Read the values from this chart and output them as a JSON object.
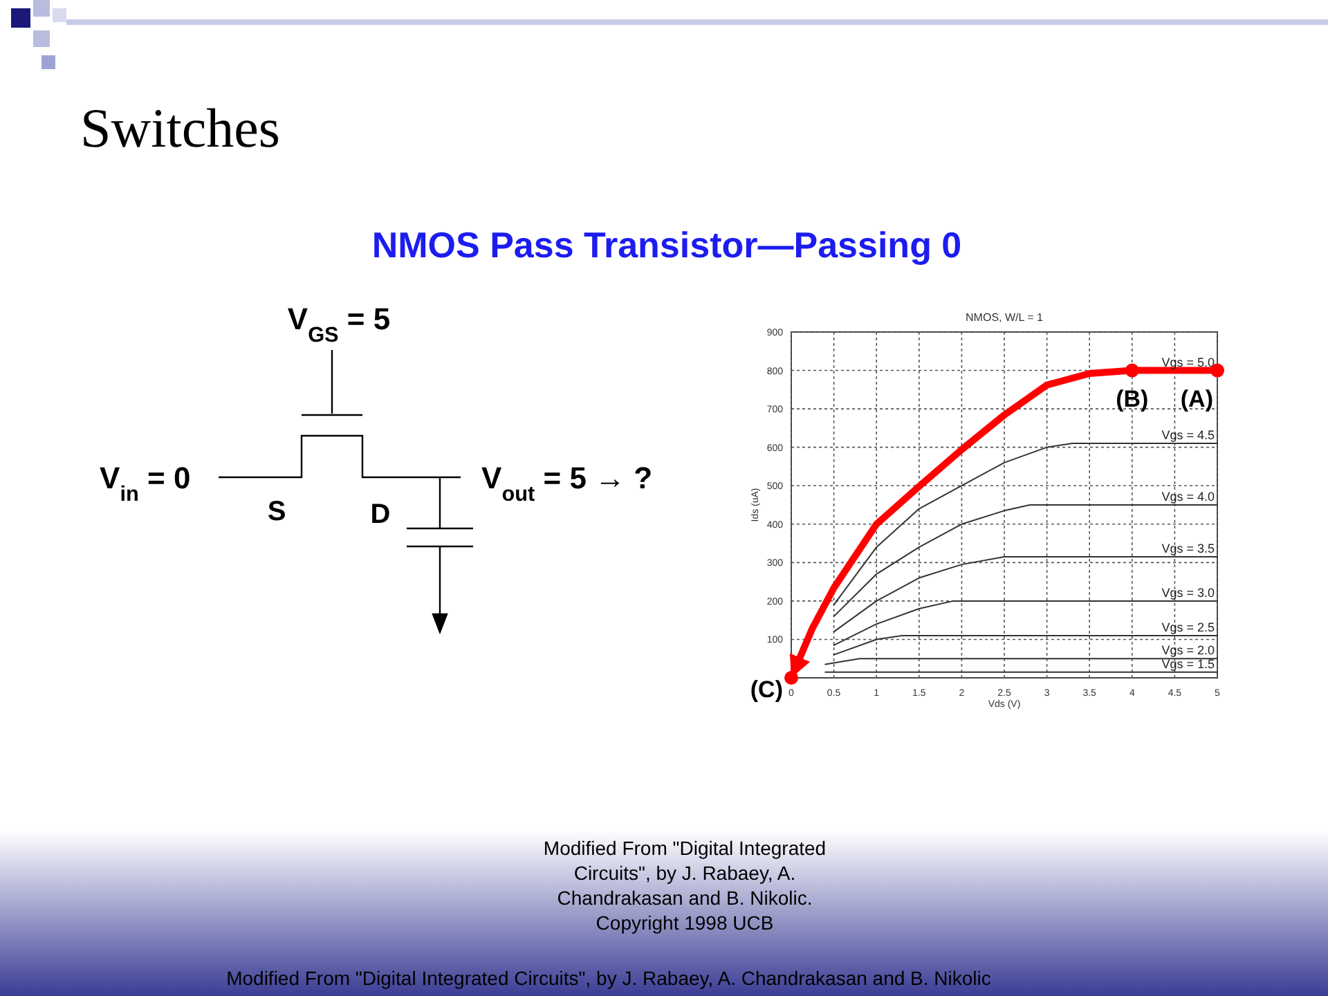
{
  "chart_data": {
    "type": "line",
    "title": "Switches",
    "subtitle": "NMOS Pass Transistor—Passing 0",
    "xlabel": "Vds (V)",
    "ylabel": "Ids (uA)",
    "xlim": [
      0,
      5
    ],
    "ylim": [
      0,
      900
    ],
    "xticks": [
      0,
      0.5,
      1,
      1.5,
      2,
      2.5,
      3,
      3.5,
      4,
      4.5,
      5
    ],
    "yticks": [
      100,
      200,
      300,
      400,
      500,
      600,
      700,
      800,
      900
    ],
    "grid": true,
    "line_style": "solid",
    "marker": "none",
    "series": [
      {
        "name": "Vgs = 5.0",
        "color": "#ff0000",
        "x": [
          0,
          0.25,
          0.5,
          1,
          1.5,
          2,
          2.5,
          3,
          3.5,
          4,
          5
        ],
        "values": [
          0,
          130,
          234,
          400,
          498,
          594,
          684,
          762,
          792,
          800,
          800
        ]
      },
      {
        "name": "Vgs = 4.5",
        "color": "#333333",
        "x": [
          0.5,
          1,
          1.5,
          2,
          2.5,
          3,
          3.3,
          5
        ],
        "values": [
          190,
          340,
          440,
          500,
          560,
          600,
          610,
          610
        ]
      },
      {
        "name": "Vgs = 4.0",
        "color": "#333333",
        "x": [
          0.5,
          1,
          1.5,
          2,
          2.5,
          2.8,
          5
        ],
        "values": [
          160,
          270,
          340,
          400,
          435,
          450,
          450
        ]
      },
      {
        "name": "Vgs = 3.5",
        "color": "#333333",
        "x": [
          0.5,
          1,
          1.5,
          2,
          2.5,
          5
        ],
        "values": [
          120,
          200,
          260,
          295,
          315,
          315
        ]
      },
      {
        "name": "Vgs = 3.0",
        "color": "#333333",
        "x": [
          0.5,
          1,
          1.5,
          1.9,
          5
        ],
        "values": [
          85,
          140,
          180,
          200,
          200
        ]
      },
      {
        "name": "Vgs = 2.5",
        "color": "#333333",
        "x": [
          0.5,
          1,
          1.3,
          5
        ],
        "values": [
          60,
          100,
          110,
          110
        ]
      },
      {
        "name": "Vgs = 2.0",
        "color": "#333333",
        "x": [
          0.4,
          0.8,
          5
        ],
        "values": [
          35,
          50,
          50
        ]
      },
      {
        "name": "Vgs = 1.5",
        "color": "#333333",
        "x": [
          0.4,
          5
        ],
        "values": [
          15,
          15
        ]
      },
      {
        "type": "scatter",
        "marker": "circle",
        "color": "#ff0000",
        "x": [
          0,
          4,
          5
        ],
        "values": [
          0,
          800,
          800
        ]
      }
    ],
    "annotations": [
      "NMOS, W/L = 1",
      "V$_{GS}$ = 5",
      "V$_{in}$ = 0",
      "S",
      "D",
      "V$_{out}$ = 5 → ?",
      "Modified From \"Digital Integrated Circuits\", by J. Rabaey, A. Chandrakasan and B. Nikolic. Copyright 1998 UCB",
      "Modified From \"Digital Integrated Circuits\", by J. Rabaey, A. Chandrakasan and B. Nikolic",
      {
        "text": "(A)",
        "x": 5,
        "y": 800
      },
      {
        "text": "(B)",
        "x": 4,
        "y": 800
      },
      {
        "text": "(C)",
        "x": 0,
        "y": 0
      }
    ]
  }
}
